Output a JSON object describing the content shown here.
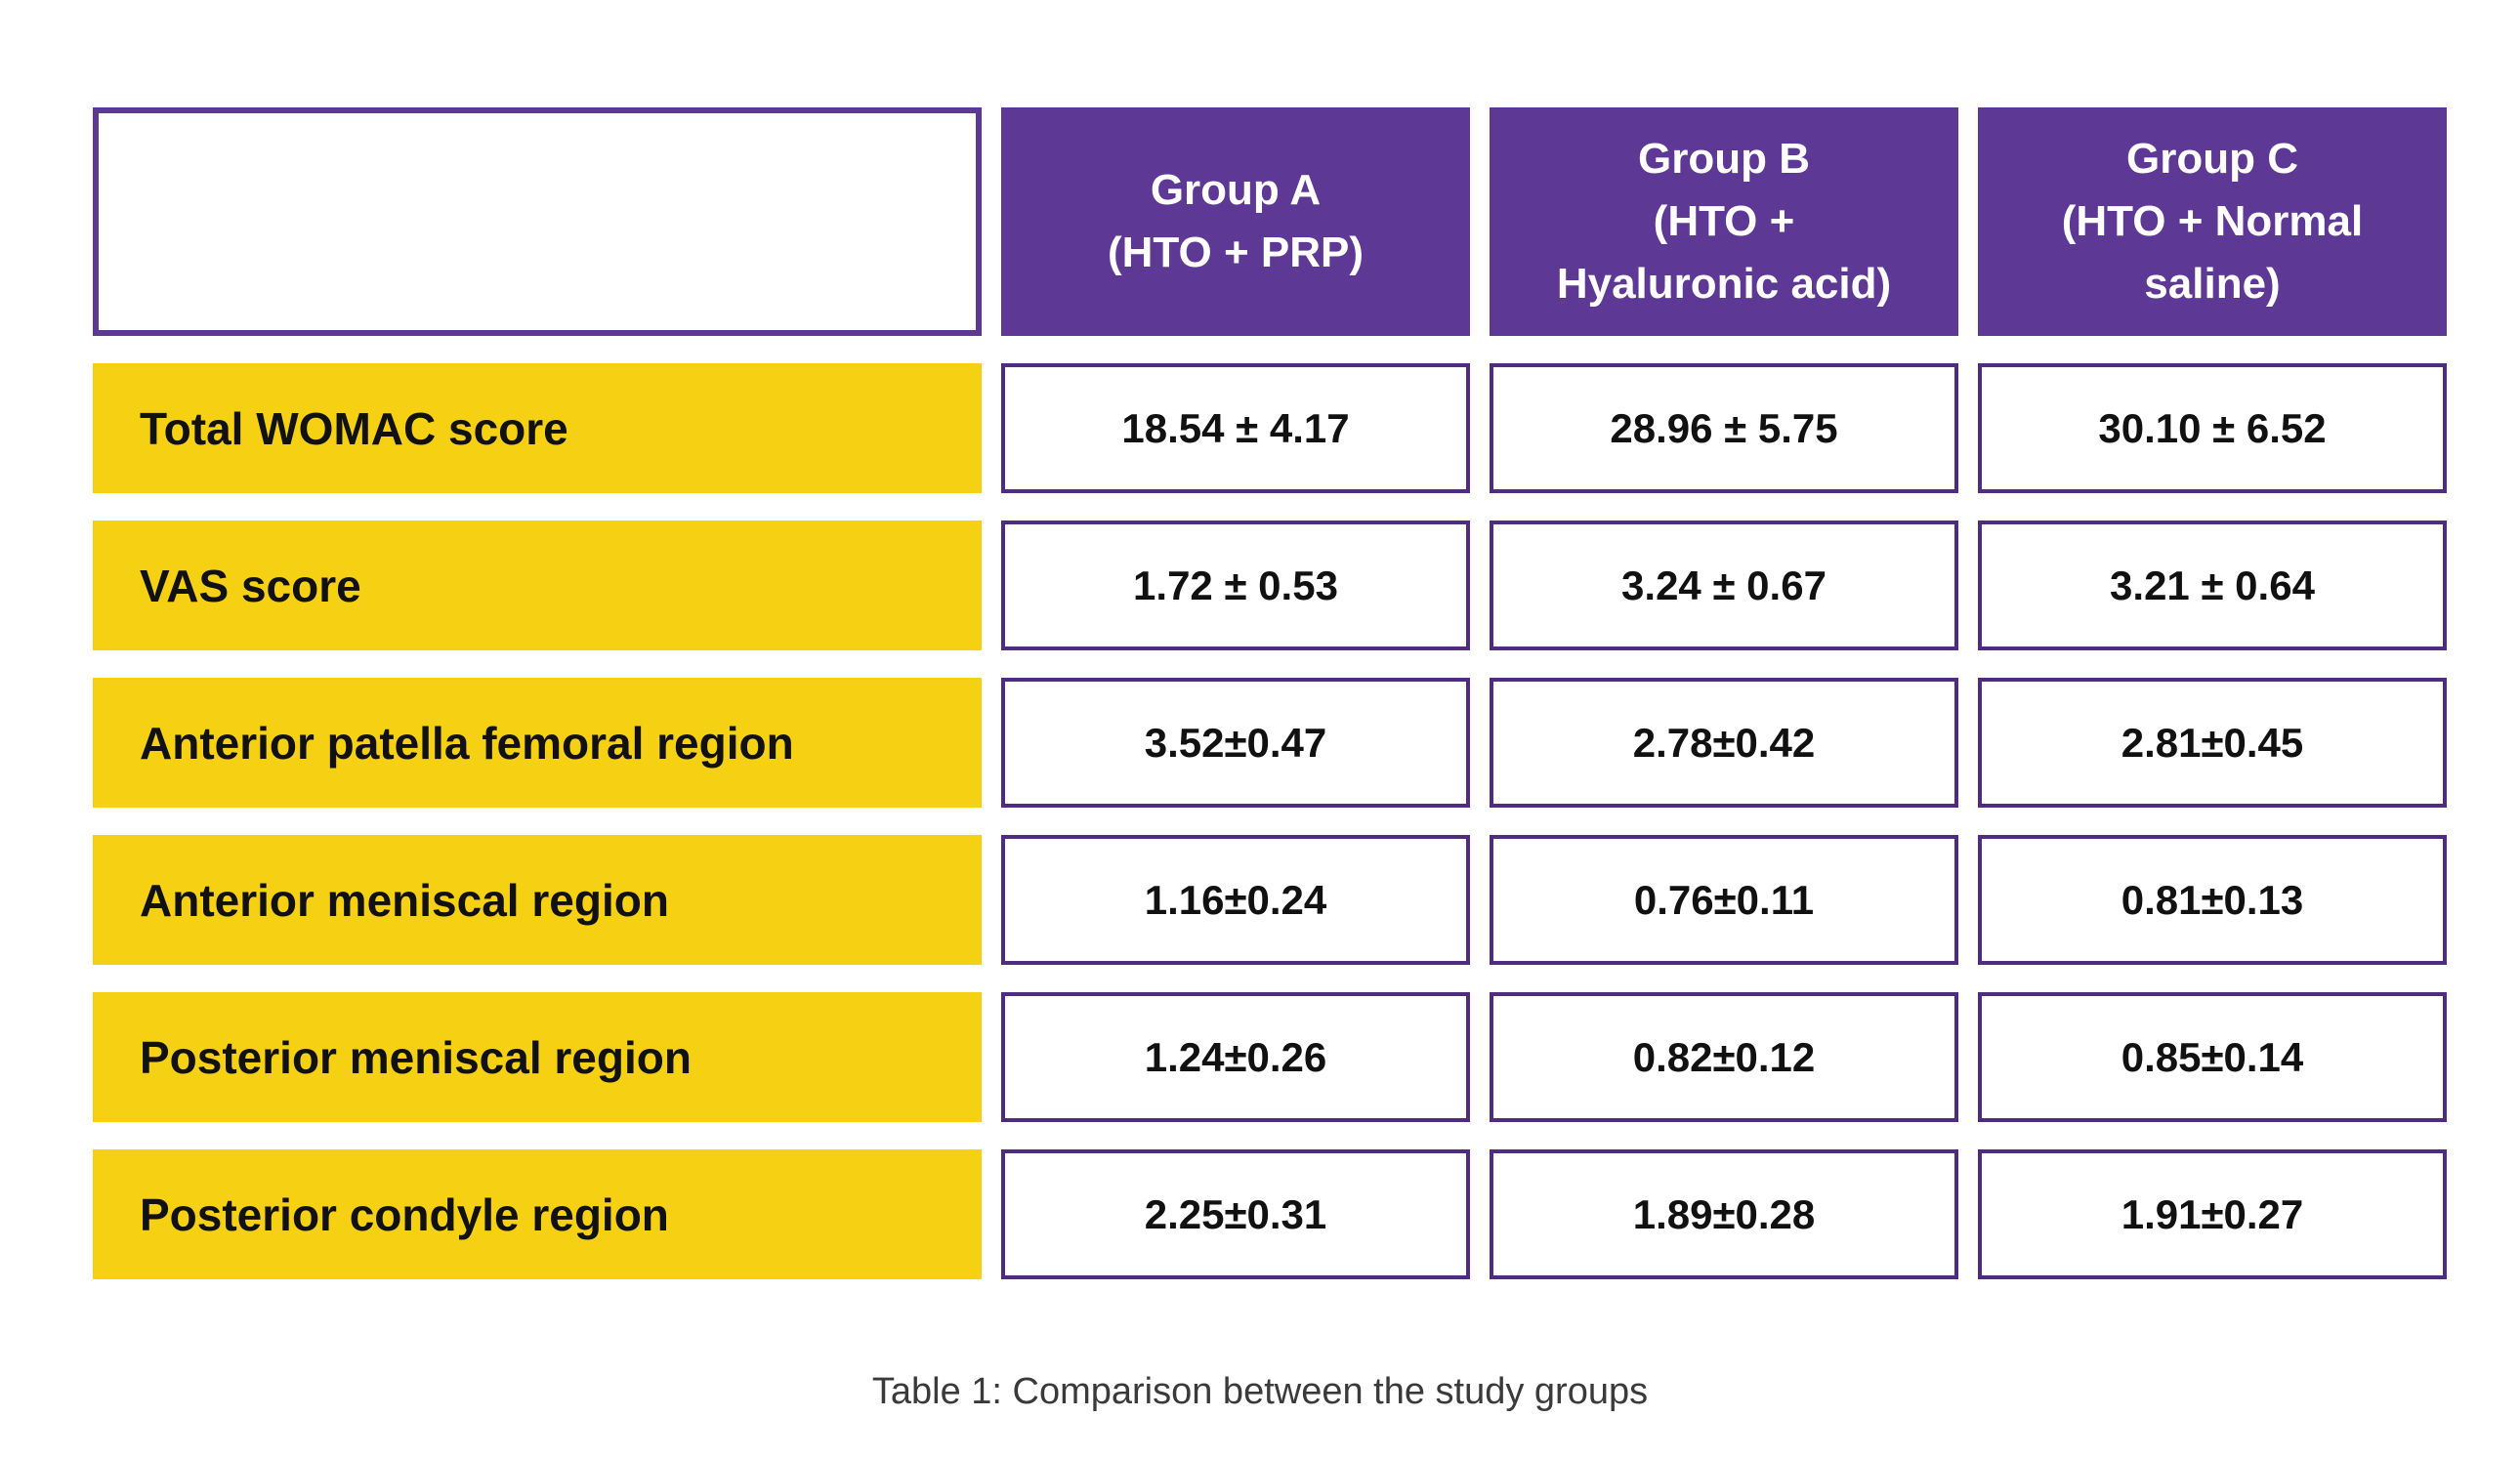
{
  "page": {
    "background": "#ffffff"
  },
  "table": {
    "caption": "Table 1: Comparison between the study groups",
    "colors": {
      "header_bg": "#5d3894",
      "header_text": "#ffffff",
      "label_bg": "#f6d013",
      "cell_border": "#4f2c82",
      "value_text": "#111111",
      "caption_text": "#3a3a3a"
    },
    "headers": [
      "Group A\n(HTO + PRP)",
      "Group B\n(HTO +\nHyaluronic acid)",
      "Group C\n(HTO + Normal\nsaline)"
    ],
    "rows": [
      {
        "label": "Total WOMAC score",
        "values": [
          "18.54 ± 4.17",
          "28.96 ± 5.75",
          "30.10 ± 6.52"
        ]
      },
      {
        "label": "VAS score",
        "values": [
          "1.72 ± 0.53",
          "3.24 ± 0.67",
          "3.21 ± 0.64"
        ]
      },
      {
        "label": "Anterior patella femoral region",
        "values": [
          "3.52±0.47",
          "2.78±0.42",
          "2.81±0.45"
        ]
      },
      {
        "label": "Anterior meniscal region",
        "values": [
          "1.16±0.24",
          "0.76±0.11",
          "0.81±0.13"
        ]
      },
      {
        "label": "Posterior meniscal region",
        "values": [
          "1.24±0.26",
          "0.82±0.12",
          "0.85±0.14"
        ]
      },
      {
        "label": "Posterior condyle region",
        "values": [
          "2.25±0.31",
          "1.89±0.28",
          "1.91±0.27"
        ]
      }
    ]
  },
  "chart_data": {
    "type": "table",
    "title": "Table 1: Comparison between the study groups",
    "columns": [
      "",
      "Group A (HTO + PRP)",
      "Group B (HTO + Hyaluronic acid)",
      "Group C (HTO + Normal saline)"
    ],
    "rows": [
      [
        "Total WOMAC score",
        "18.54 ± 4.17",
        "28.96 ± 5.75",
        "30.10 ± 6.52"
      ],
      [
        "VAS score",
        "1.72 ± 0.53",
        "3.24 ± 0.67",
        "3.21 ± 0.64"
      ],
      [
        "Anterior patella femoral region",
        "3.52±0.47",
        "2.78±0.42",
        "2.81±0.45"
      ],
      [
        "Anterior meniscal region",
        "1.16±0.24",
        "0.76±0.11",
        "0.81±0.13"
      ],
      [
        "Posterior meniscal region",
        "1.24±0.26",
        "0.82±0.12",
        "0.85±0.14"
      ],
      [
        "Posterior condyle region",
        "2.25±0.31",
        "1.89±0.28",
        "1.91±0.27"
      ]
    ],
    "layout": {
      "header_row_on_top": true,
      "row_labels_in_first_column": true,
      "grid": "separated-cells"
    }
  }
}
